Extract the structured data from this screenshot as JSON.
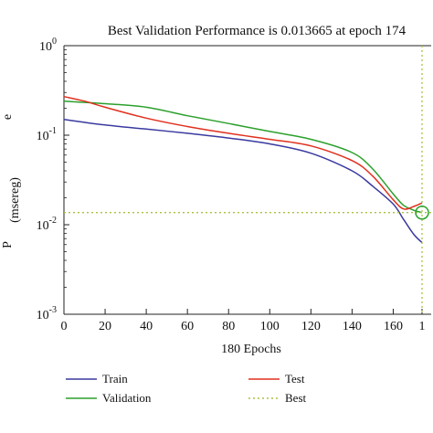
{
  "chart_data": {
    "type": "line",
    "title": "Best Validation Performance is 0.013665 at epoch 174",
    "xlabel": "180 Epochs",
    "ylabel": "(msereg)",
    "yscale": "log",
    "xlim": [
      0,
      174
    ],
    "ylim": [
      0.001,
      1
    ],
    "x_ticks": [
      "0",
      "20",
      "40",
      "60",
      "80",
      "100",
      "120",
      "140",
      "160",
      "1"
    ],
    "y_ticks": [
      {
        "base": "10",
        "exp": "0",
        "value": 1
      },
      {
        "base": "10",
        "exp": "-1",
        "value": 0.1
      },
      {
        "base": "10",
        "exp": "-2",
        "value": 0.01
      },
      {
        "base": "10",
        "exp": "-3",
        "value": 0.001
      }
    ],
    "series": [
      {
        "name": "Train",
        "color": "#3a3aa0",
        "x": [
          0,
          20,
          40,
          60,
          80,
          100,
          120,
          140,
          150,
          160,
          165,
          170,
          174
        ],
        "y": [
          0.15,
          0.13,
          0.117,
          0.105,
          0.093,
          0.08,
          0.063,
          0.04,
          0.027,
          0.017,
          0.0115,
          0.0078,
          0.0063
        ]
      },
      {
        "name": "Validation",
        "color": "#2ca02c",
        "x": [
          0,
          20,
          40,
          60,
          80,
          100,
          120,
          140,
          150,
          160,
          165,
          170,
          174
        ],
        "y": [
          0.24,
          0.225,
          0.205,
          0.165,
          0.135,
          0.11,
          0.09,
          0.064,
          0.042,
          0.022,
          0.0165,
          0.0145,
          0.013665
        ]
      },
      {
        "name": "Test",
        "color": "#e0301e",
        "x": [
          0,
          10,
          20,
          40,
          60,
          80,
          100,
          120,
          140,
          150,
          160,
          165,
          170,
          174
        ],
        "y": [
          0.27,
          0.24,
          0.205,
          0.155,
          0.125,
          0.105,
          0.09,
          0.076,
          0.052,
          0.035,
          0.019,
          0.015,
          0.016,
          0.0175
        ]
      }
    ],
    "best": {
      "name": "Best",
      "color": "#a8c240",
      "epoch": 174,
      "value": 0.013665
    },
    "legend": [
      {
        "label": "Train",
        "color": "#3a3aa0",
        "style": "solid"
      },
      {
        "label": "Test",
        "color": "#e0301e",
        "style": "solid"
      },
      {
        "label": "Validation",
        "color": "#2ca02c",
        "style": "solid"
      },
      {
        "label": "Best",
        "color": "#a8c240",
        "style": "dotted"
      }
    ],
    "legend_position": "bottom",
    "grid": false
  },
  "ylabel_side_glyphs": [
    "e",
    "P"
  ]
}
